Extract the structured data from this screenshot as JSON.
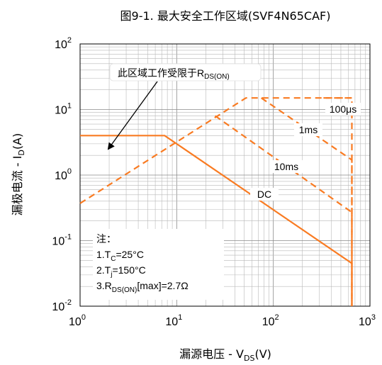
{
  "chart_data": {
    "type": "line",
    "title": "图9-1. 最大安全工作区域(SVF4N65CAF)",
    "xlabel": {
      "main": "漏源电压 - V",
      "sub": "DS",
      "tail": "(V)"
    },
    "ylabel": {
      "main": "漏极电流 - I",
      "sub": "D",
      "tail": "(A)"
    },
    "x_scale": "log",
    "y_scale": "log",
    "xlim": [
      1,
      1000
    ],
    "ylim": [
      0.01,
      100
    ],
    "x_ticks": [
      {
        "base": "10",
        "exp": "0"
      },
      {
        "base": "10",
        "exp": "1"
      },
      {
        "base": "10",
        "exp": "2"
      },
      {
        "base": "10",
        "exp": "3"
      }
    ],
    "y_ticks": [
      {
        "base": "10",
        "exp": "-2"
      },
      {
        "base": "10",
        "exp": "-1"
      },
      {
        "base": "10",
        "exp": "0"
      },
      {
        "base": "10",
        "exp": "1"
      },
      {
        "base": "10",
        "exp": "2"
      }
    ],
    "grid": true,
    "color": "#F97B22",
    "series": [
      {
        "name": "DC",
        "style": "solid",
        "x": [
          1,
          7.5,
          650,
          650
        ],
        "y": [
          4,
          4,
          0.045,
          0.01
        ]
      },
      {
        "name": "10ms",
        "style": "dashed",
        "x": [
          25,
          650,
          650
        ],
        "y": [
          8,
          0.27,
          0.01
        ]
      },
      {
        "name": "1ms",
        "style": "dashed",
        "x": [
          75,
          650,
          650
        ],
        "y": [
          15,
          1.7,
          0.01
        ]
      },
      {
        "name": "100μs",
        "style": "dashed",
        "x": [
          330,
          650,
          650
        ],
        "y": [
          15,
          15,
          0.01
        ]
      },
      {
        "name": "",
        "style": "dashed",
        "x": [
          1,
          52,
          650
        ],
        "y": [
          0.37,
          15,
          15
        ]
      }
    ],
    "annotations": {
      "rdson_text": {
        "main": "此区域工作受限于R",
        "sub": "DS(ON)"
      },
      "label_100us": "100μs",
      "label_1ms": "1ms",
      "label_10ms": "10ms",
      "label_dc": "DC"
    },
    "notes": {
      "header": "注：",
      "line1": {
        "pre": "1.T",
        "sub": "C",
        "post": "=25°C"
      },
      "line2": {
        "pre": "2.T",
        "sub": "j",
        "post": "=150°C"
      },
      "line3": {
        "pre": "3.R",
        "sub": "DS(ON)",
        "post": "[max]=2.7Ω"
      }
    }
  }
}
